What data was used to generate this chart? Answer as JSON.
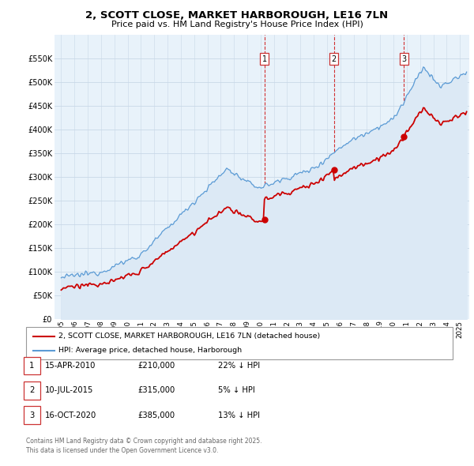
{
  "title": "2, SCOTT CLOSE, MARKET HARBOROUGH, LE16 7LN",
  "subtitle": "Price paid vs. HM Land Registry's House Price Index (HPI)",
  "hpi_label": "HPI: Average price, detached house, Harborough",
  "property_label": "2, SCOTT CLOSE, MARKET HARBOROUGH, LE16 7LN (detached house)",
  "sale_color": "#cc0000",
  "hpi_color": "#5b9bd5",
  "hpi_fill_color": "#dce9f5",
  "sale_points": [
    {
      "year": 2010.29,
      "price": 210000,
      "label": "1"
    },
    {
      "year": 2015.53,
      "price": 315000,
      "label": "2"
    },
    {
      "year": 2020.79,
      "price": 385000,
      "label": "3"
    }
  ],
  "table_rows": [
    {
      "num": "1",
      "date": "15-APR-2010",
      "price": "£210,000",
      "hpi": "22% ↓ HPI"
    },
    {
      "num": "2",
      "date": "10-JUL-2015",
      "price": "£315,000",
      "hpi": "5% ↓ HPI"
    },
    {
      "num": "3",
      "date": "16-OCT-2020",
      "price": "£385,000",
      "hpi": "13% ↓ HPI"
    }
  ],
  "footnote": "Contains HM Land Registry data © Crown copyright and database right 2025.\nThis data is licensed under the Open Government Licence v3.0.",
  "ylim": [
    0,
    600000
  ],
  "xlim_start": 1994.5,
  "xlim_end": 2025.7,
  "background_color": "#e8f2fa",
  "grid_color": "#c8d8e8"
}
